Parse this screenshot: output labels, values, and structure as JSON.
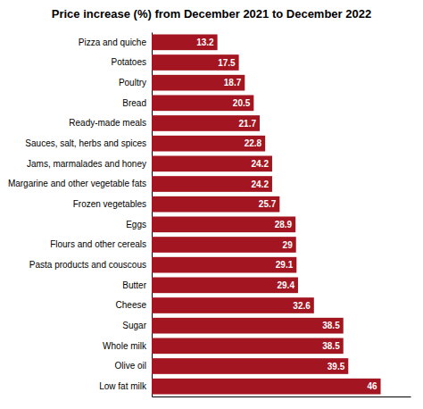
{
  "chart_data": {
    "type": "bar",
    "orientation": "horizontal",
    "title": "Price increase (%) from December 2021 to December 2022",
    "categories": [
      "Pizza and quiche",
      "Potatoes",
      "Poultry",
      "Bread",
      "Ready-made meals",
      "Sauces, salt, herbs and spices",
      "Jams, marmalades and honey",
      "Margarine and other vegetable fats",
      "Frozen vegetables",
      "Eggs",
      "Flours and other cereals",
      "Pasta products and couscous",
      "Butter",
      "Cheese",
      "Sugar",
      "Whole milk",
      "Olive oil",
      "Low fat milk"
    ],
    "values": [
      13.2,
      17.5,
      18.7,
      20.5,
      21.7,
      22.8,
      24.2,
      24.2,
      25.7,
      28.9,
      29,
      29.1,
      29.4,
      32.6,
      38.5,
      38.5,
      39.5,
      46
    ],
    "color": "#a31621",
    "xlim": [
      0,
      52
    ],
    "xticks": [],
    "data_labels": true,
    "tick_labels": "y"
  }
}
